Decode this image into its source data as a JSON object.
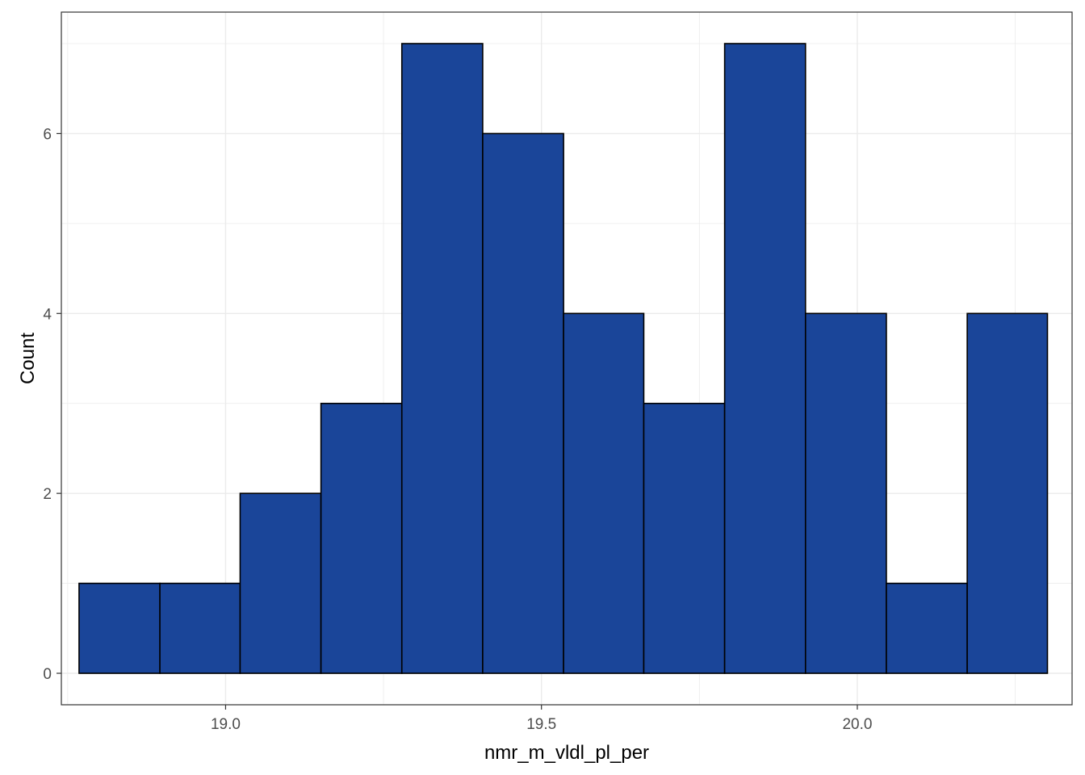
{
  "chart_data": {
    "type": "bar",
    "histogram": true,
    "title": "",
    "xlabel": "nmr_m_vldl_pl_per",
    "ylabel": "Count",
    "xlim": [
      18.74,
      20.34
    ],
    "ylim": [
      -0.35,
      7.35
    ],
    "x_ticks": [
      {
        "value": 19.0,
        "label": "19.0"
      },
      {
        "value": 19.5,
        "label": "19.5"
      },
      {
        "value": 20.0,
        "label": "20.0"
      }
    ],
    "y_ticks": [
      {
        "value": 0,
        "label": "0"
      },
      {
        "value": 2,
        "label": "2"
      },
      {
        "value": 4,
        "label": "4"
      },
      {
        "value": 6,
        "label": "6"
      }
    ],
    "bins": [
      {
        "x0": 18.768,
        "x1": 18.896,
        "count": 1
      },
      {
        "x0": 18.896,
        "x1": 19.023,
        "count": 1
      },
      {
        "x0": 19.023,
        "x1": 19.151,
        "count": 2
      },
      {
        "x0": 19.151,
        "x1": 19.279,
        "count": 3
      },
      {
        "x0": 19.279,
        "x1": 19.407,
        "count": 7
      },
      {
        "x0": 19.407,
        "x1": 19.535,
        "count": 6
      },
      {
        "x0": 19.535,
        "x1": 19.662,
        "count": 4
      },
      {
        "x0": 19.662,
        "x1": 19.79,
        "count": 3
      },
      {
        "x0": 19.79,
        "x1": 19.918,
        "count": 7
      },
      {
        "x0": 19.918,
        "x1": 20.046,
        "count": 4
      },
      {
        "x0": 20.046,
        "x1": 20.174,
        "count": 1
      },
      {
        "x0": 20.174,
        "x1": 20.301,
        "count": 4
      }
    ],
    "grid": true,
    "legend": "none",
    "colors": {
      "bar_fill": "#1a4599",
      "bar_stroke": "#000000",
      "grid": "#ebebeb",
      "panel_border": "#333333"
    }
  }
}
